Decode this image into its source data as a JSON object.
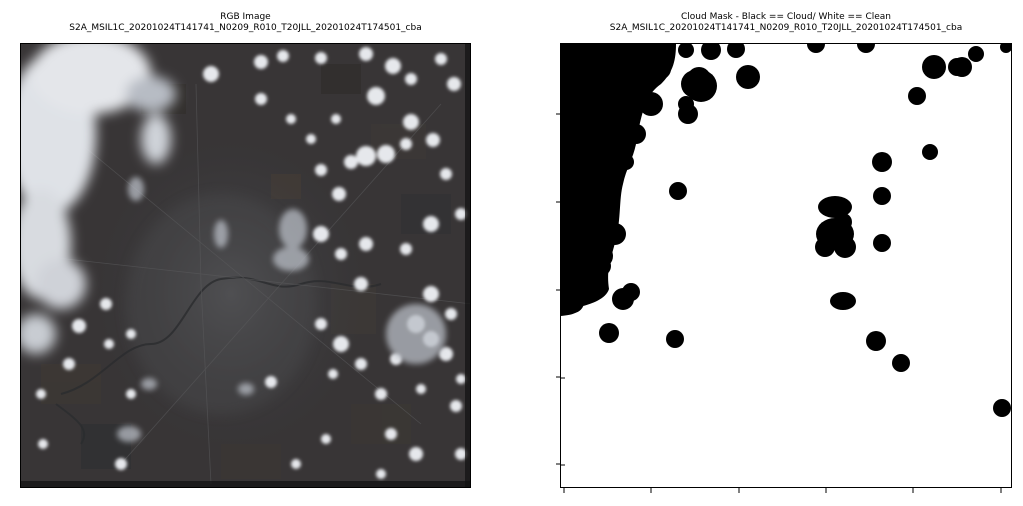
{
  "left_panel": {
    "title_line1": "RGB Image",
    "title_line2": "S2A_MSIL1C_20201024T141741_N0209_R010_T20JLL_20201024T174501_cba"
  },
  "right_panel": {
    "title_line1": "Cloud Mask - Black == Cloud/ White == Clean",
    "title_line2": "S2A_MSIL1C_20201024T141741_N0209_R010_T20JLL_20201024T174501_cba"
  },
  "colors": {
    "cloud": "#000000",
    "clean": "#ffffff",
    "terrain": "#36373a",
    "urban": "#4a4a4c",
    "cloud_rgb": "#e6e8ec"
  }
}
